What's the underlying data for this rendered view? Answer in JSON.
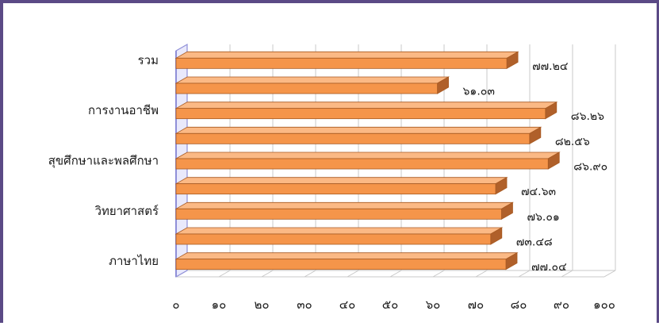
{
  "chart_data": {
    "type": "bar",
    "orientation": "horizontal",
    "style": "3d",
    "categories": [
      "ภาษาไทย",
      "",
      "วิทยาศาสตร์",
      "",
      "สุขศึกษาและพลศึกษา",
      "",
      "การงานอาชีพ",
      "",
      "รวม"
    ],
    "values": [
      77.04,
      73.48,
      76.01,
      74.63,
      86.9,
      82.56,
      86.26,
      61.03,
      77.24
    ],
    "data_labels": [
      "๗๗.๐๔",
      "๗๓.๔๘",
      "๗๖.๐๑",
      "๗๔.๖๓",
      "๘๖.๙๐",
      "๘๒.๕๖",
      "๘๖.๒๖",
      "๖๑.๐๓",
      "๗๗.๒๔"
    ],
    "xlim": [
      0,
      100
    ],
    "x_ticks": [
      0,
      10,
      20,
      30,
      40,
      50,
      60,
      70,
      80,
      90,
      100
    ],
    "x_tick_labels": [
      "๐",
      "๑๐",
      "๒๐",
      "๓๐",
      "๔๐",
      "๕๐",
      "๖๐",
      "๗๐",
      "๘๐",
      "๙๐",
      "๑๐๐"
    ],
    "grid": true,
    "title": "",
    "xlabel": "",
    "ylabel": "",
    "colors": {
      "bar_face": "#f5954a",
      "bar_top": "#fbb985",
      "bar_side": "#b0602a",
      "bar_edge": "#a85a22",
      "gridline": "#c8c8c8",
      "axis": "#8f8fd8",
      "frame": "#5b4a86"
    }
  }
}
